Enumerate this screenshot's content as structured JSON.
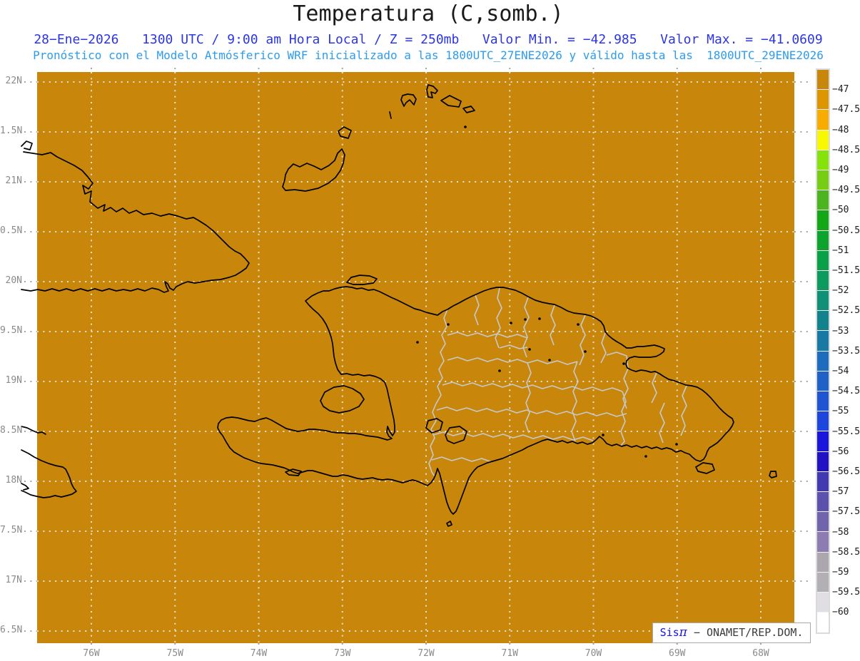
{
  "title": "Temperatura (C,somb.)",
  "header": {
    "line1": "28−Ene−2026   1300 UTC / 9:00 am Hora Local / Z = 250mb   Valor Min. = −42.985   Valor Max. = −41.0609",
    "line2": "Pronóstico con el Modelo Atmósferico WRF inicializado a las 1800UTC_27ENE2026 y válido hasta las  1800UTC_29ENE2026"
  },
  "map": {
    "bg": "#C8860B",
    "grid_inner": "#E8E2D2",
    "grid_outer": "#A8A49B",
    "coast_color": "#000000",
    "border_color": "#C6C9CC",
    "lat_labels": [
      "22N",
      "1.5N",
      "21N",
      "0.5N",
      "20N",
      "9.5N",
      "19N",
      "8.5N",
      "18N",
      "7.5N",
      "17N",
      "6.5N"
    ],
    "lon_labels": [
      "76W",
      "75W",
      "74W",
      "73W",
      "72W",
      "71W",
      "70W",
      "69W",
      "68W"
    ]
  },
  "colorbar": {
    "labels": [
      "−47",
      "−47.5",
      "−48",
      "−48.5",
      "−49",
      "−49.5",
      "−50",
      "−50.5",
      "−51",
      "−51.5",
      "−52",
      "−52.5",
      "−53",
      "−53.5",
      "−54",
      "−54.5",
      "−55",
      "−55.5",
      "−56",
      "−56.5",
      "−57",
      "−57.5",
      "−58",
      "−58.5",
      "−59",
      "−59.5",
      "−60"
    ],
    "colors": [
      "#C8860B",
      "#DE9600",
      "#F9AC00",
      "#F8F800",
      "#86E30A",
      "#76CE14",
      "#4CB41E",
      "#14A816",
      "#0DA42E",
      "#0AA047",
      "#0C9A5F",
      "#0F9077",
      "#12838D",
      "#1879A5",
      "#1E6CBE",
      "#2061C8",
      "#1F54D2",
      "#1C46DC",
      "#1A16DE",
      "#2112C4",
      "#4238B2",
      "#5C52AE",
      "#7164AC",
      "#8D7CB1",
      "#ACA7AF",
      "#B3B0B5",
      "#E0DEE2",
      "#FFFFFF"
    ]
  },
  "credit": {
    "sis": "Sis",
    "pi": "π",
    "text": " − ONAMET/REP.DOM.",
    "sis_color": "#1414F0",
    "text_color": "#3C3C3C"
  }
}
